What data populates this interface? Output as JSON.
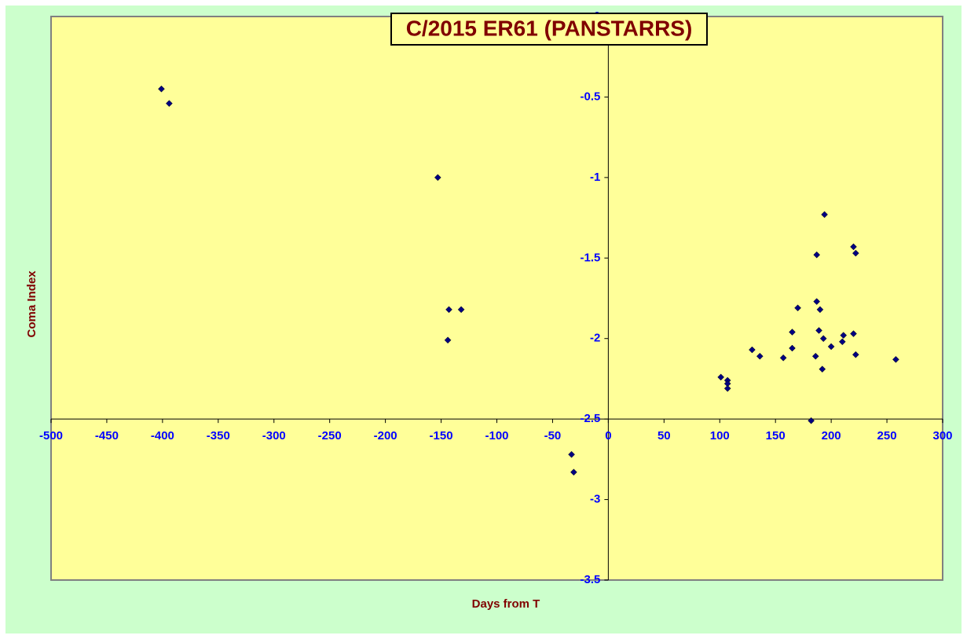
{
  "chart_data": {
    "type": "scatter",
    "title": "C/2015 ER61 (PANSTARRS)",
    "x_label": "Days from T",
    "y_label": "Coma Index",
    "xlim": [
      -500,
      300
    ],
    "ylim": [
      -3.5,
      0
    ],
    "xticks": [
      -500,
      -450,
      -400,
      -350,
      -300,
      -250,
      -200,
      -150,
      -100,
      -50,
      0,
      50,
      100,
      150,
      200,
      250,
      300
    ],
    "yticks": [
      0,
      -0.5,
      -1,
      -1.5,
      -2,
      -2.5,
      -3,
      -3.5
    ],
    "color": "#000080",
    "x": [
      -401,
      -394,
      -153,
      -143,
      -132,
      -144,
      -33,
      -31,
      101,
      107,
      107,
      107,
      129,
      136,
      157,
      165,
      165,
      170,
      182,
      187,
      187,
      186,
      190,
      189,
      192,
      193,
      194,
      200,
      210,
      211,
      220,
      222,
      220,
      222,
      258
    ],
    "y": [
      -0.45,
      -0.54,
      -1.0,
      -1.82,
      -1.82,
      -2.01,
      -2.72,
      -2.83,
      -2.24,
      -2.26,
      -2.28,
      -2.31,
      -2.07,
      -2.11,
      -2.12,
      -1.96,
      -2.06,
      -1.81,
      -2.51,
      -1.48,
      -1.77,
      -2.11,
      -1.82,
      -1.95,
      -2.19,
      -2.0,
      -1.23,
      -2.05,
      -2.02,
      -1.98,
      -1.43,
      -1.47,
      -1.97,
      -2.1,
      -2.13
    ]
  }
}
